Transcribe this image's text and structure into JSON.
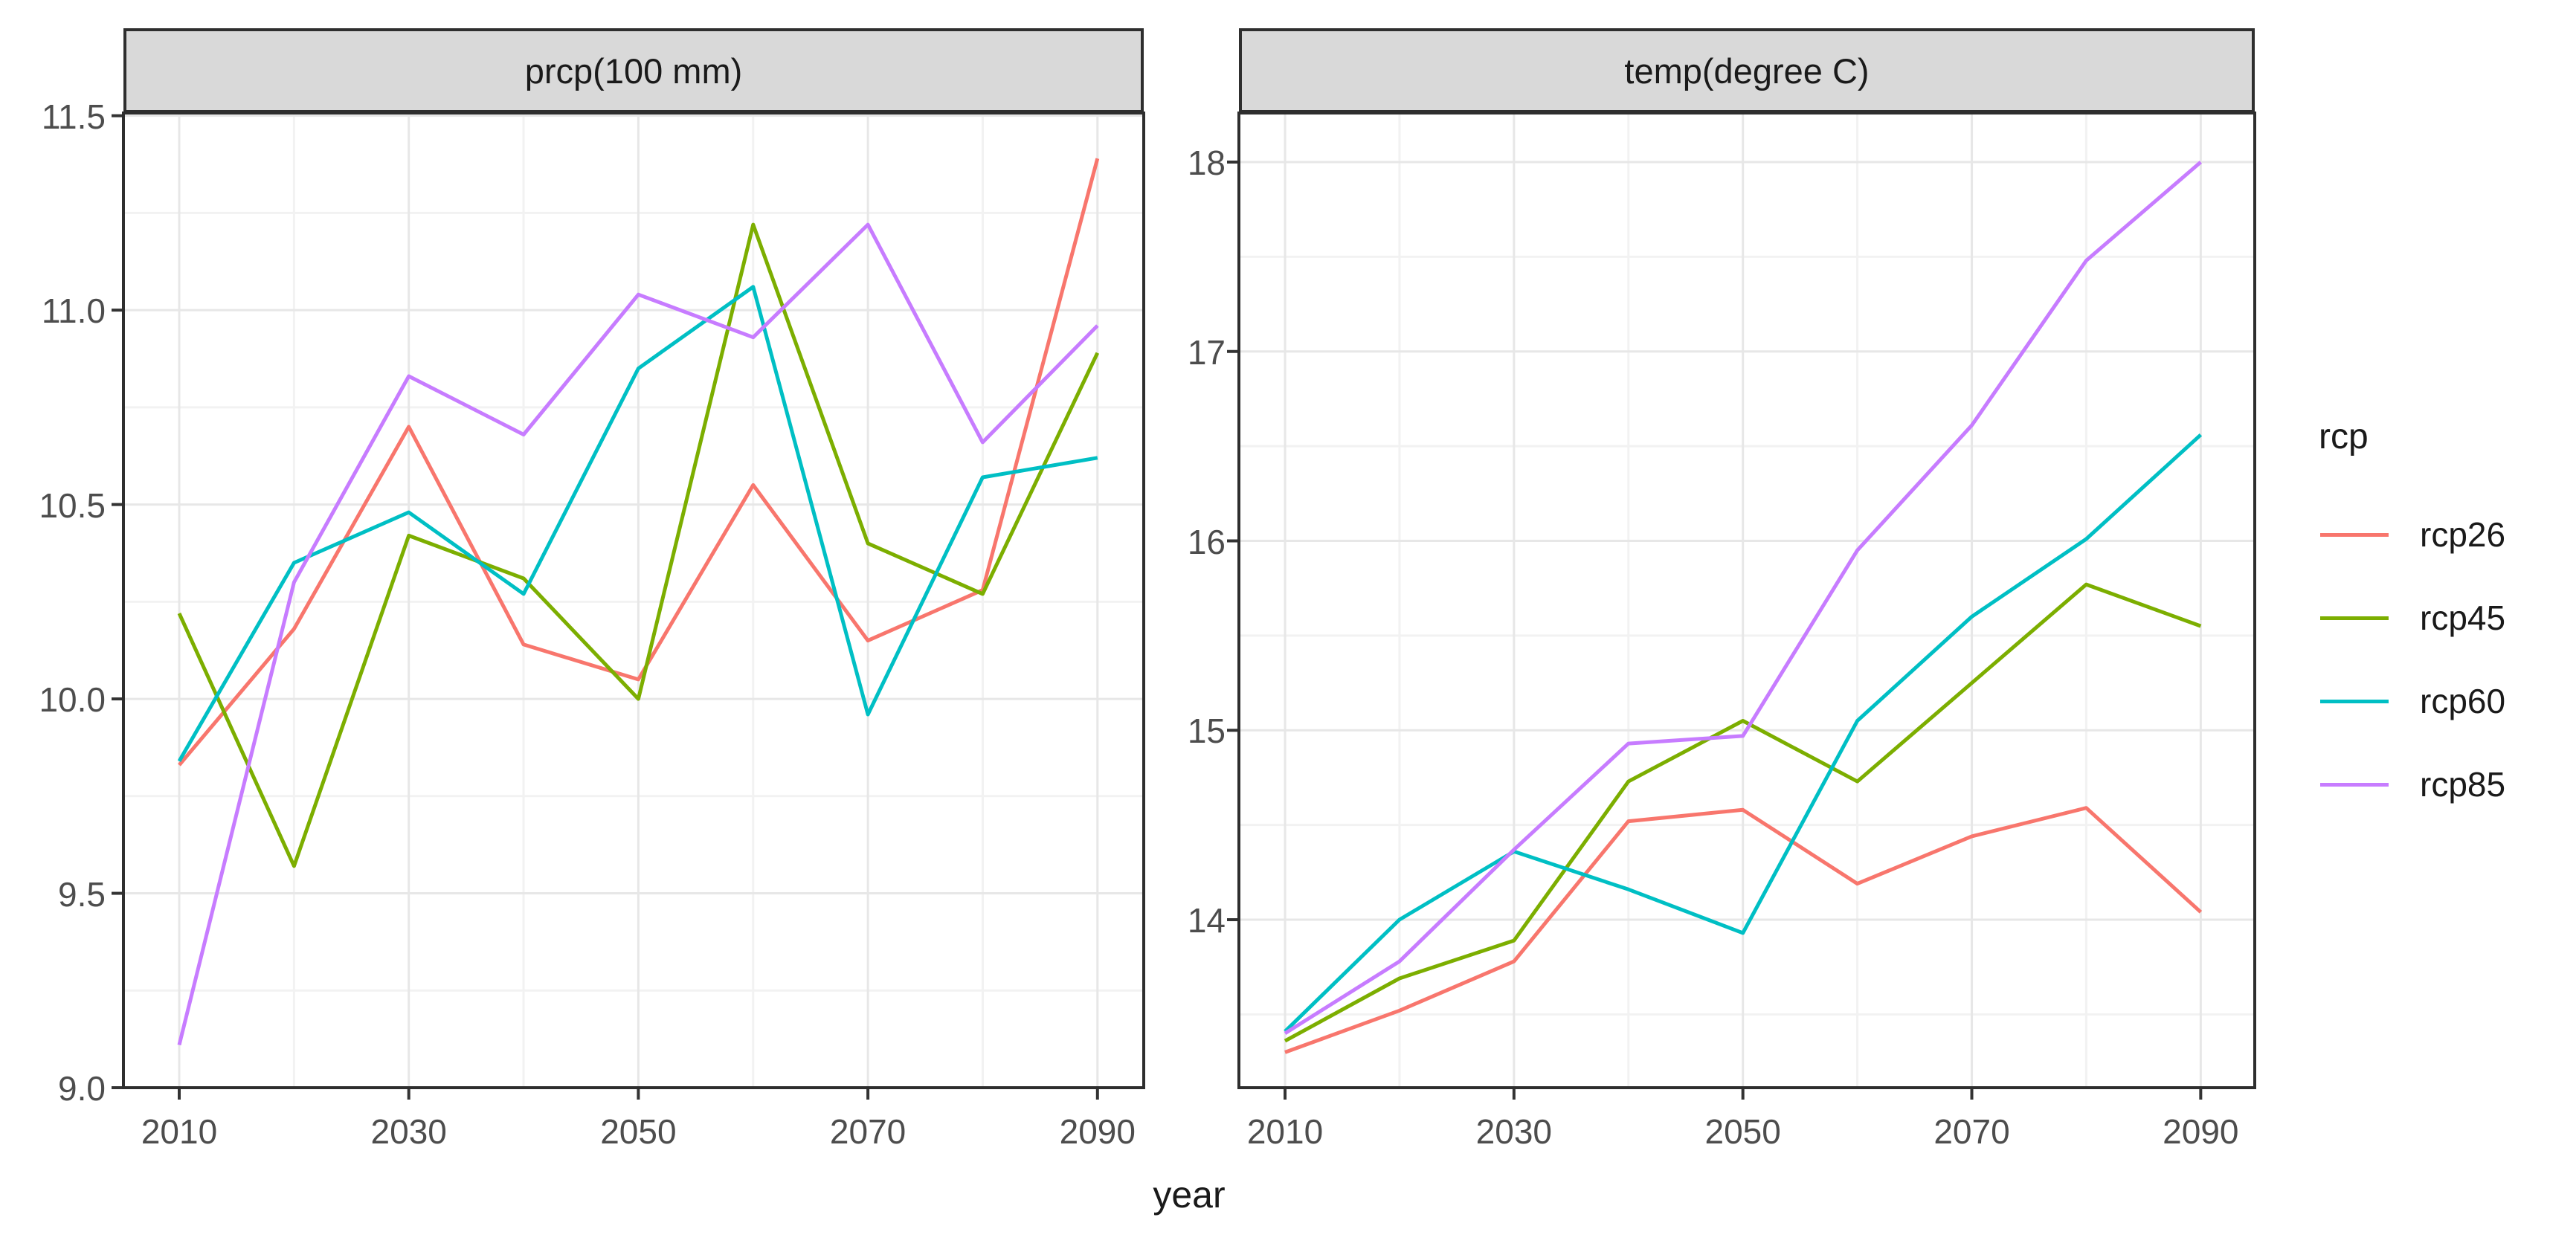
{
  "figure": {
    "xlabel": "year",
    "strip_bg": "#d9d9d9",
    "border_color": "#2e2e2e",
    "grid_major_color": "#e7e7e7",
    "grid_minor_color": "#f2f2f2",
    "tick_text_color": "#4d4d4d"
  },
  "legend": {
    "title": "rcp",
    "items": [
      {
        "label": "rcp26",
        "color": "#F8766D"
      },
      {
        "label": "rcp45",
        "color": "#7CAE00"
      },
      {
        "label": "rcp60",
        "color": "#00BFC4"
      },
      {
        "label": "rcp85",
        "color": "#C77CFF"
      }
    ]
  },
  "chart_data": [
    {
      "type": "line",
      "title": "prcp(100 mm)",
      "xlabel": "year",
      "x": [
        2010,
        2020,
        2030,
        2040,
        2050,
        2060,
        2070,
        2080,
        2090
      ],
      "xticks": [
        2010,
        2030,
        2050,
        2070,
        2090
      ],
      "xtick_labels": [
        "2010",
        "2030",
        "2050",
        "2070",
        "2090"
      ],
      "xlim": [
        2005.14,
        2094.03
      ],
      "yticks": [
        9.0,
        9.5,
        10.0,
        10.5,
        11.0,
        11.5
      ],
      "ytick_labels": [
        "9.0",
        "9.5",
        "10.0",
        "10.5",
        "11.0",
        "11.5"
      ],
      "ylim": [
        9.0,
        11.507
      ],
      "grid": true,
      "legend_position": "right",
      "series": [
        {
          "name": "rcp26",
          "color": "#F8766D",
          "values": [
            9.83,
            10.18,
            10.7,
            10.14,
            10.05,
            10.55,
            10.15,
            10.28,
            11.39
          ]
        },
        {
          "name": "rcp45",
          "color": "#7CAE00",
          "values": [
            10.22,
            9.57,
            10.42,
            10.31,
            10.0,
            11.22,
            10.4,
            10.27,
            10.89
          ]
        },
        {
          "name": "rcp60",
          "color": "#00BFC4",
          "values": [
            9.84,
            10.35,
            10.48,
            10.27,
            10.85,
            11.06,
            9.96,
            10.57,
            10.62
          ]
        },
        {
          "name": "rcp85",
          "color": "#C77CFF",
          "values": [
            9.11,
            10.3,
            10.83,
            10.68,
            11.04,
            10.93,
            11.22,
            10.66,
            10.96
          ]
        }
      ]
    },
    {
      "type": "line",
      "title": "temp(degree C)",
      "xlabel": "year",
      "x": [
        2010,
        2020,
        2030,
        2040,
        2050,
        2060,
        2070,
        2080,
        2090
      ],
      "xticks": [
        2010,
        2030,
        2050,
        2070,
        2090
      ],
      "xtick_labels": [
        "2010",
        "2030",
        "2050",
        "2070",
        "2090"
      ],
      "xlim": [
        2005.97,
        2094.72
      ],
      "yticks": [
        14,
        15,
        16,
        17,
        18
      ],
      "ytick_labels": [
        "14",
        "15",
        "16",
        "17",
        "18"
      ],
      "ylim": [
        13.113,
        18.259
      ],
      "grid": true,
      "legend_position": "right",
      "series": [
        {
          "name": "rcp26",
          "color": "#F8766D",
          "values": [
            13.3,
            13.52,
            13.78,
            14.52,
            14.58,
            14.19,
            14.44,
            14.59,
            14.04
          ]
        },
        {
          "name": "rcp45",
          "color": "#7CAE00",
          "values": [
            13.36,
            13.69,
            13.89,
            14.73,
            15.05,
            14.73,
            15.25,
            15.77,
            15.55
          ]
        },
        {
          "name": "rcp60",
          "color": "#00BFC4",
          "values": [
            13.41,
            14.0,
            14.36,
            14.16,
            13.93,
            15.05,
            15.6,
            16.01,
            16.56
          ]
        },
        {
          "name": "rcp85",
          "color": "#C77CFF",
          "values": [
            13.4,
            13.78,
            14.37,
            14.93,
            14.97,
            15.95,
            16.61,
            17.48,
            18.0
          ]
        }
      ]
    }
  ]
}
